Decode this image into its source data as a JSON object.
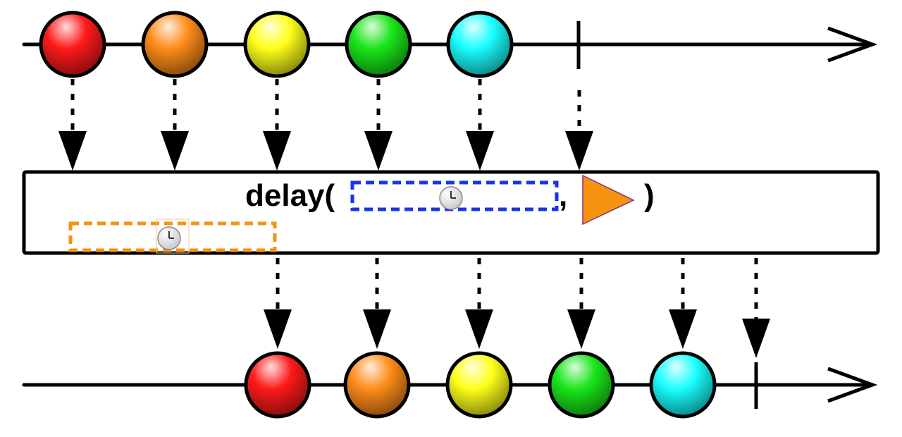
{
  "operator": {
    "name": "delay(",
    "separator": ",",
    "close": ")"
  },
  "colors": {
    "line": "#000000",
    "duration_box_top": "#1a35e6",
    "duration_box_bottom": "#f7930e",
    "trigger_triangle": "#f7930e",
    "trigger_triangle_stroke": "#8a2e8a"
  },
  "icons": {
    "duration_top": "clock-icon",
    "duration_bottom": "clock-icon",
    "trigger": "orange-triangle-icon"
  },
  "source_marbles": [
    {
      "name": "red-marble",
      "color": "#ff1a1a"
    },
    {
      "name": "orange-marble",
      "color": "#ff8c1a"
    },
    {
      "name": "yellow-marble",
      "color": "#ffff1a"
    },
    {
      "name": "green-marble",
      "color": "#1ae61a"
    },
    {
      "name": "cyan-marble",
      "color": "#1affff"
    }
  ],
  "output_marbles": [
    {
      "name": "red-marble",
      "color": "#ff1a1a"
    },
    {
      "name": "orange-marble",
      "color": "#ff8c1a"
    },
    {
      "name": "yellow-marble",
      "color": "#ffff1a"
    },
    {
      "name": "green-marble",
      "color": "#1ae61a"
    },
    {
      "name": "cyan-marble",
      "color": "#1affff"
    }
  ]
}
